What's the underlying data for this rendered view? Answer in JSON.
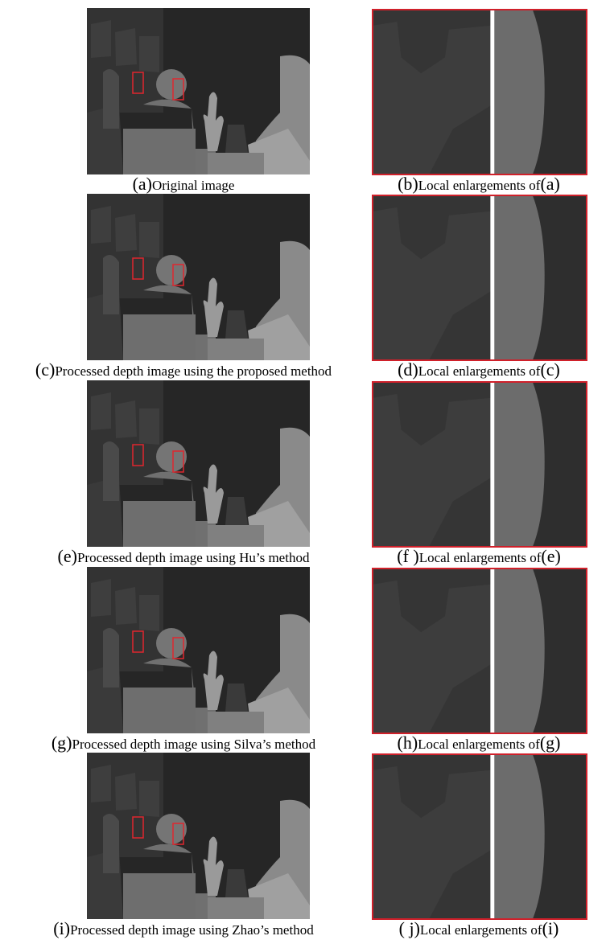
{
  "panels": [
    {
      "label": "(a)",
      "caption": "Original image"
    },
    {
      "label": "(b)",
      "caption": "Local enlargements of",
      "ref": "(a)"
    },
    {
      "label": "(c)",
      "caption": "Processed depth image using the proposed method"
    },
    {
      "label": "(d)",
      "caption": "Local enlargements of",
      "ref": "(c)"
    },
    {
      "label": "(e)",
      "caption": "Processed depth image using Hu’s method"
    },
    {
      "label": "(f )",
      "caption": "Local enlargements of",
      "ref": "(e)"
    },
    {
      "label": "(g)",
      "caption": "Processed depth image using Silva’s method"
    },
    {
      "label": "(h)",
      "caption": "Local enlargements of",
      "ref": "(g)"
    },
    {
      "label": "(i)",
      "caption": "Processed depth image using Zhao’s method"
    },
    {
      "label": "( j)",
      "caption": "Local enlargements of",
      "ref": "(i)"
    }
  ]
}
